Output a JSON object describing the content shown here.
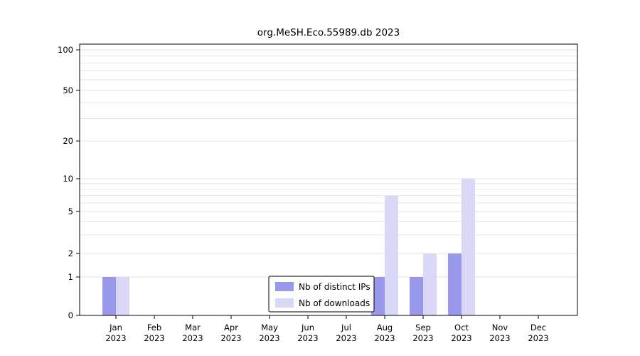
{
  "page": {
    "background": "#ffffff"
  },
  "chart_data": {
    "type": "bar",
    "title": "org.MeSH.Eco.55989.db 2023",
    "categories": [
      "Jan 2023",
      "Feb 2023",
      "Mar 2023",
      "Apr 2023",
      "May 2023",
      "Jun 2023",
      "Jul 2023",
      "Aug 2023",
      "Sep 2023",
      "Oct 2023",
      "Nov 2023",
      "Dec 2023"
    ],
    "series": [
      {
        "name": "Nb of distinct IPs",
        "color": "#9999ec",
        "values": [
          1,
          0,
          0,
          0,
          0,
          0,
          0,
          1,
          1,
          2,
          0,
          0
        ]
      },
      {
        "name": "Nb of downloads",
        "color": "#d9d9f7",
        "values": [
          1,
          0,
          0,
          0,
          0,
          0,
          0,
          7,
          2,
          10,
          0,
          0
        ]
      }
    ],
    "y_ticks": [
      0,
      1,
      2,
      5,
      10,
      20,
      50,
      100
    ],
    "y_scale": "log-like",
    "ylim": [
      0,
      110
    ],
    "grid": true,
    "grid_color": "#e2e2e2",
    "axis_color": "#000000",
    "legend_position": "bottom-center",
    "xlabel": "",
    "ylabel": ""
  }
}
